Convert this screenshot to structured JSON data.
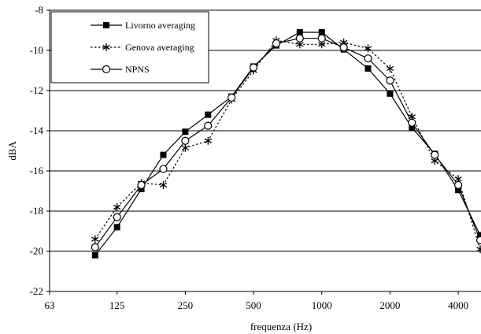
{
  "chart_data": {
    "type": "line",
    "title": "",
    "xlabel": "frequenza (Hz)",
    "ylabel": "dBA",
    "x_scale": "log2",
    "xlim": [
      63,
      5040
    ],
    "ylim": [
      -22,
      -8
    ],
    "x_ticks": [
      63,
      125,
      250,
      500,
      1000,
      2000,
      4000
    ],
    "x_tick_labels": [
      "63",
      "125",
      "250",
      "500",
      "1000",
      "2000",
      "4000"
    ],
    "y_ticks": [
      -22,
      -20,
      -18,
      -16,
      -14,
      -12,
      -10,
      -8
    ],
    "y_tick_labels": [
      "-22",
      "-20",
      "-18",
      "-16",
      "-14",
      "-12",
      "-10",
      "-8"
    ],
    "grid": "horizontal",
    "legend_position": "top-left",
    "x": [
      100,
      125,
      160,
      200,
      250,
      315,
      400,
      500,
      630,
      800,
      1000,
      1250,
      1600,
      2000,
      2500,
      3150,
      4000,
      5000
    ],
    "series": [
      {
        "name": "Livorno averaging",
        "marker": "square-filled",
        "line": "solid",
        "values": [
          -20.2,
          -18.8,
          -16.9,
          -15.2,
          -14.05,
          -13.2,
          -12.3,
          -10.8,
          -9.75,
          -9.1,
          -9.1,
          -9.95,
          -10.9,
          -12.15,
          -13.85,
          -15.15,
          -16.95,
          -19.2
        ]
      },
      {
        "name": "Genova averaging",
        "marker": "asterisk",
        "line": "dotted",
        "values": [
          -19.4,
          -17.8,
          -16.6,
          -16.7,
          -14.85,
          -14.5,
          -12.45,
          -11.0,
          -9.5,
          -9.7,
          -9.7,
          -9.6,
          -9.9,
          -10.9,
          -13.3,
          -15.5,
          -16.4,
          -19.9
        ]
      },
      {
        "name": "NPNS",
        "marker": "circle-open",
        "line": "solid",
        "values": [
          -19.8,
          -18.3,
          -16.7,
          -15.9,
          -14.5,
          -13.75,
          -12.35,
          -10.85,
          -9.65,
          -9.4,
          -9.4,
          -9.85,
          -10.4,
          -11.5,
          -13.6,
          -15.2,
          -16.7,
          -19.45
        ]
      }
    ]
  }
}
